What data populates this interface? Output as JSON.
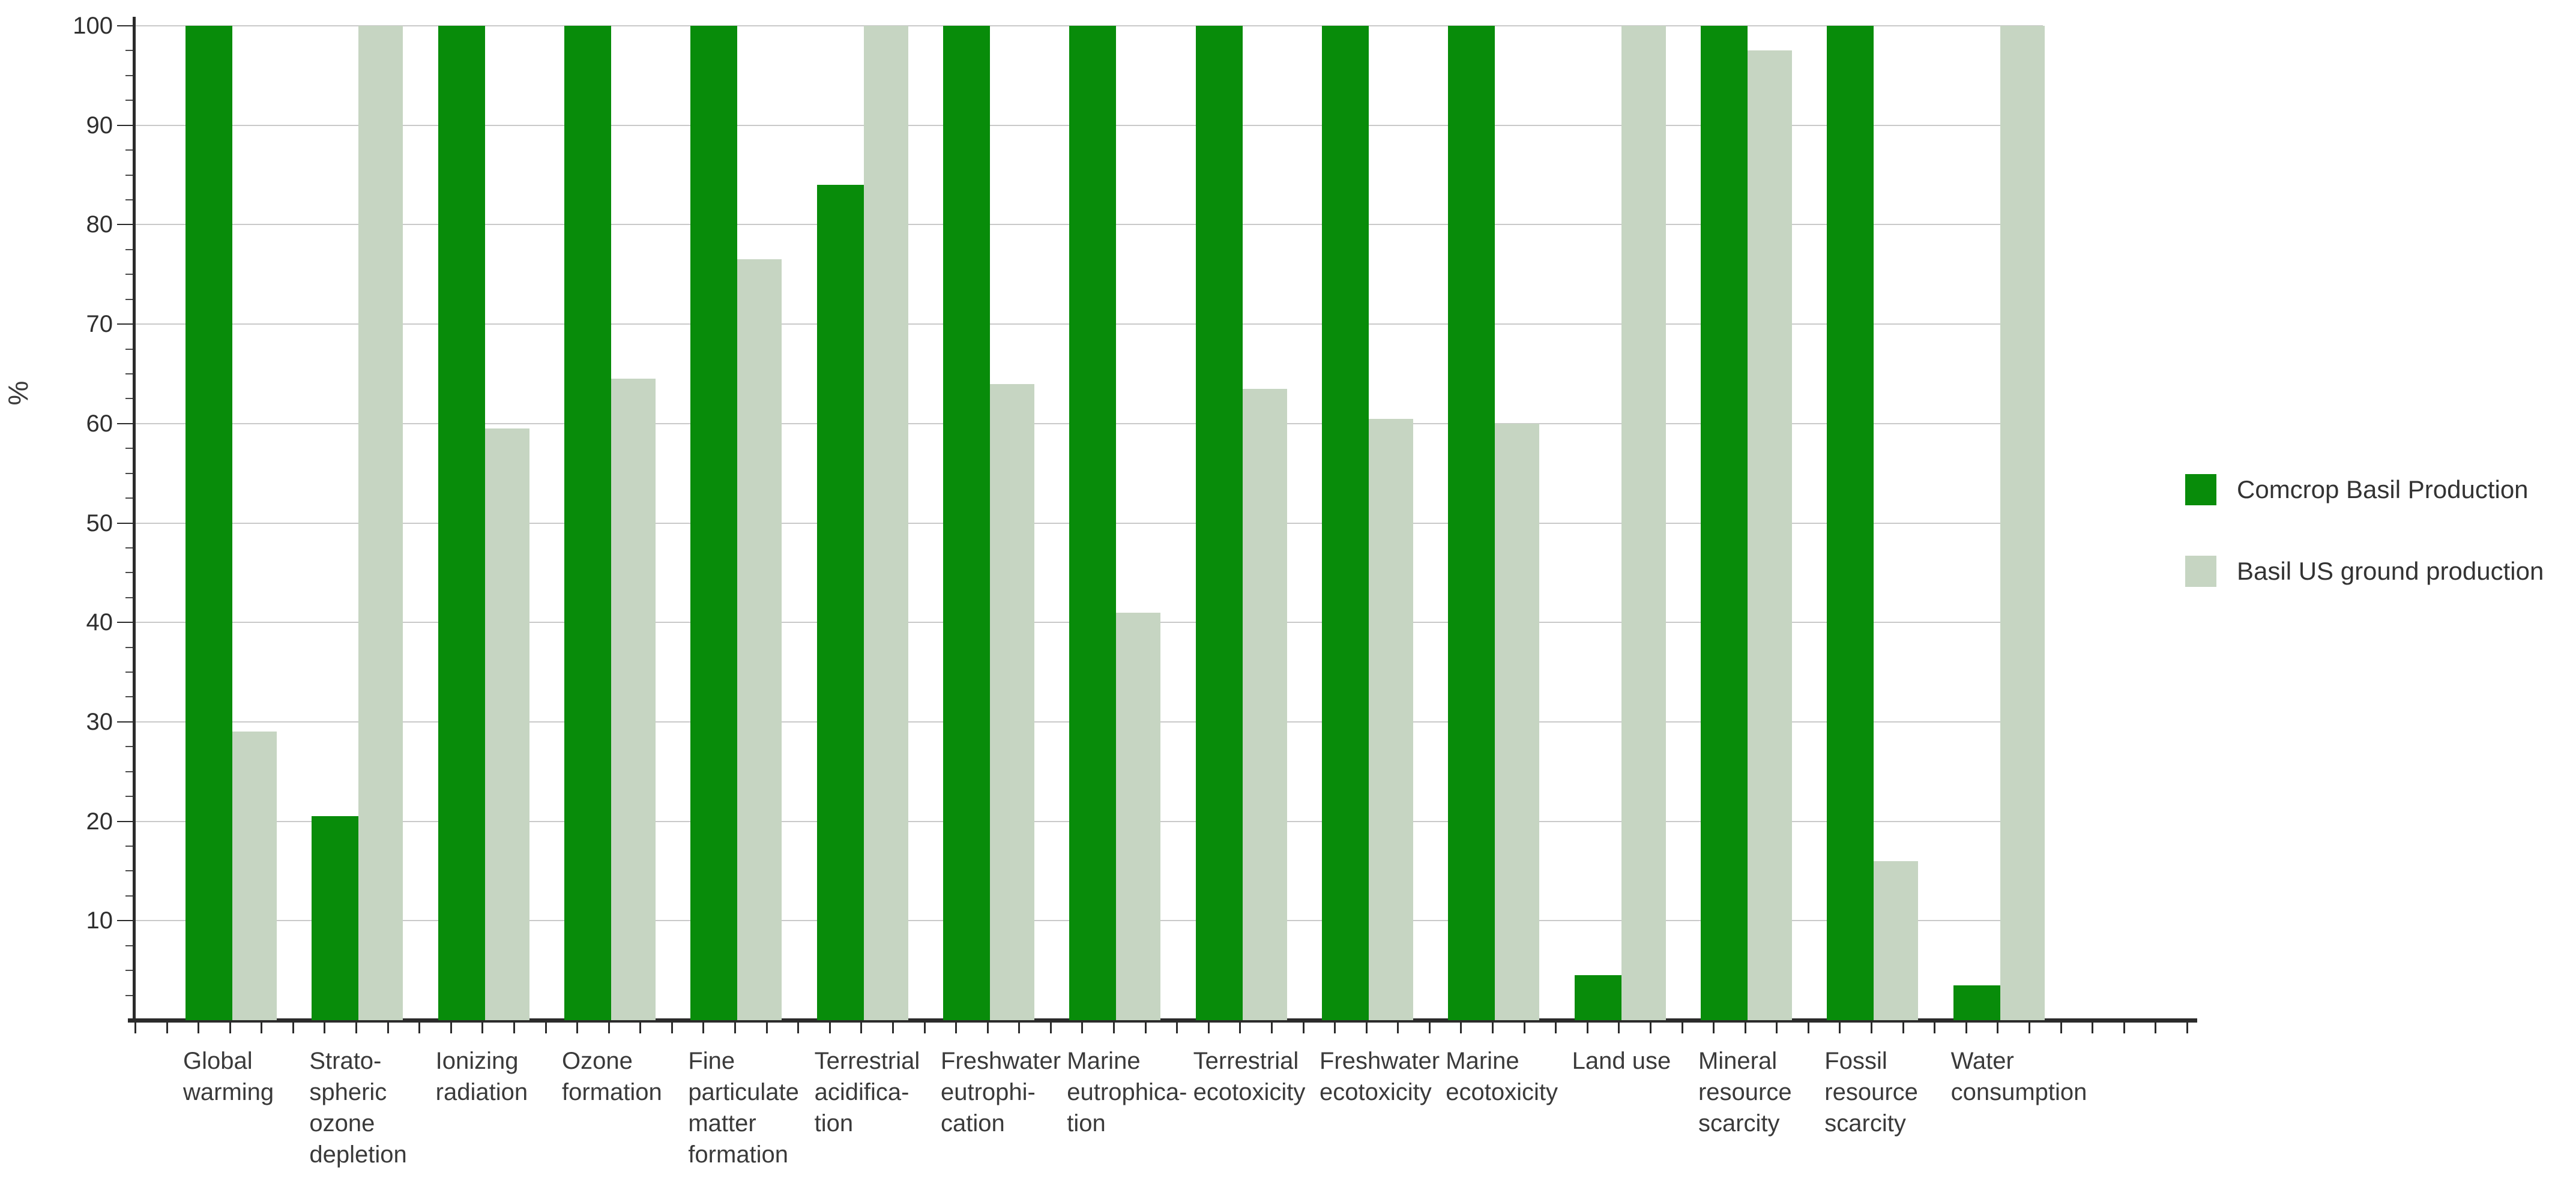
{
  "chart_data": {
    "type": "bar",
    "title": "",
    "xlabel": "",
    "ylabel": "%",
    "ylim": [
      0,
      100
    ],
    "yticks": [
      10,
      20,
      30,
      40,
      50,
      60,
      70,
      80,
      90,
      100
    ],
    "grid": true,
    "legend_position": "right-center",
    "categories": [
      "Global\nwarming",
      "Strato-\nspheric\nozone\ndepletion",
      "Ionizing\nradiation",
      "Ozone\nformation",
      "Fine\nparticulate\nmatter\nformation",
      "Terrestrial\nacidifica-\ntion",
      "Freshwater\neutrophi-\ncation",
      "Marine\neutrophica-\ntion",
      "Terrestrial\necotoxicity",
      "Freshwater\necotoxicity",
      "Marine\necotoxicity",
      "Land use",
      "Mineral\nresource\nscarcity",
      "Fossil\nresource\nscarcity",
      "Water\nconsumption"
    ],
    "series": [
      {
        "name": "Comcrop Basil Production",
        "color": "#088c0a",
        "values": [
          100,
          20.5,
          100,
          100,
          100,
          84,
          100,
          100,
          100,
          100,
          100,
          4.5,
          100,
          100,
          3.5
        ]
      },
      {
        "name": "Basil US ground production",
        "color": "#c6d5c2",
        "values": [
          29,
          100,
          59.5,
          64.5,
          76.5,
          100,
          64,
          41,
          63.5,
          60.5,
          60,
          100,
          97.5,
          16,
          100
        ]
      }
    ]
  },
  "colors": {
    "axis": "#2b2b2b",
    "gridline": "#c9c9c9",
    "text": "#3a3a3a",
    "background": "#ffffff"
  }
}
